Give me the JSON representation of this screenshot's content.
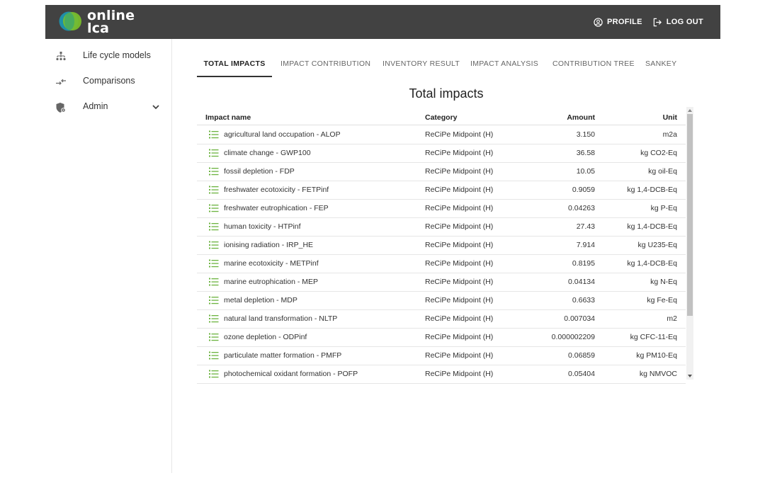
{
  "app": {
    "logo_line1": "online",
    "logo_line2": "lca",
    "profile_label": "PROFILE",
    "logout_label": "LOG OUT",
    "header_bg": "#424242"
  },
  "sidebar": {
    "items": [
      {
        "label": "Life cycle models",
        "icon": "hierarchy-icon"
      },
      {
        "label": "Comparisons",
        "icon": "compare-arrows-icon"
      },
      {
        "label": "Admin",
        "icon": "shield-gear-icon"
      }
    ]
  },
  "tabs": [
    {
      "label": "TOTAL IMPACTS",
      "active": true
    },
    {
      "label": "IMPACT CONTRIBUTION",
      "active": false
    },
    {
      "label": "INVENTORY RESULT",
      "active": false
    },
    {
      "label": "IMPACT ANALYSIS",
      "active": false
    },
    {
      "label": "CONTRIBUTION TREE",
      "active": false
    },
    {
      "label": "SANKEY",
      "active": false
    }
  ],
  "page_title": "Total impacts",
  "table": {
    "headers": {
      "name": "Impact name",
      "category": "Category",
      "amount": "Amount",
      "unit": "Unit"
    },
    "rows": [
      {
        "name": "agricultural land occupation - ALOP",
        "category": "ReCiPe Midpoint (H)",
        "amount": "3.150",
        "unit": "m2a"
      },
      {
        "name": "climate change - GWP100",
        "category": "ReCiPe Midpoint (H)",
        "amount": "36.58",
        "unit": "kg CO2-Eq"
      },
      {
        "name": "fossil depletion - FDP",
        "category": "ReCiPe Midpoint (H)",
        "amount": "10.05",
        "unit": "kg oil-Eq"
      },
      {
        "name": "freshwater ecotoxicity - FETPinf",
        "category": "ReCiPe Midpoint (H)",
        "amount": "0.9059",
        "unit": "kg 1,4-DCB-Eq"
      },
      {
        "name": "freshwater eutrophication - FEP",
        "category": "ReCiPe Midpoint (H)",
        "amount": "0.04263",
        "unit": "kg P-Eq"
      },
      {
        "name": "human toxicity - HTPinf",
        "category": "ReCiPe Midpoint (H)",
        "amount": "27.43",
        "unit": "kg 1,4-DCB-Eq"
      },
      {
        "name": "ionising radiation - IRP_HE",
        "category": "ReCiPe Midpoint (H)",
        "amount": "7.914",
        "unit": "kg U235-Eq"
      },
      {
        "name": "marine ecotoxicity - METPinf",
        "category": "ReCiPe Midpoint (H)",
        "amount": "0.8195",
        "unit": "kg 1,4-DCB-Eq"
      },
      {
        "name": "marine eutrophication - MEP",
        "category": "ReCiPe Midpoint (H)",
        "amount": "0.04134",
        "unit": "kg N-Eq"
      },
      {
        "name": "metal depletion - MDP",
        "category": "ReCiPe Midpoint (H)",
        "amount": "0.6633",
        "unit": "kg Fe-Eq"
      },
      {
        "name": "natural land transformation - NLTP",
        "category": "ReCiPe Midpoint (H)",
        "amount": "0.007034",
        "unit": "m2"
      },
      {
        "name": "ozone depletion - ODPinf",
        "category": "ReCiPe Midpoint (H)",
        "amount": "0.000002209",
        "unit": "kg CFC-11-Eq"
      },
      {
        "name": "particulate matter formation - PMFP",
        "category": "ReCiPe Midpoint (H)",
        "amount": "0.06859",
        "unit": "kg PM10-Eq"
      },
      {
        "name": "photochemical oxidant formation - POFP",
        "category": "ReCiPe Midpoint (H)",
        "amount": "0.05404",
        "unit": "kg NMVOC"
      }
    ],
    "row_icon": "list-icon",
    "row_icon_color": "#6cb33f"
  }
}
